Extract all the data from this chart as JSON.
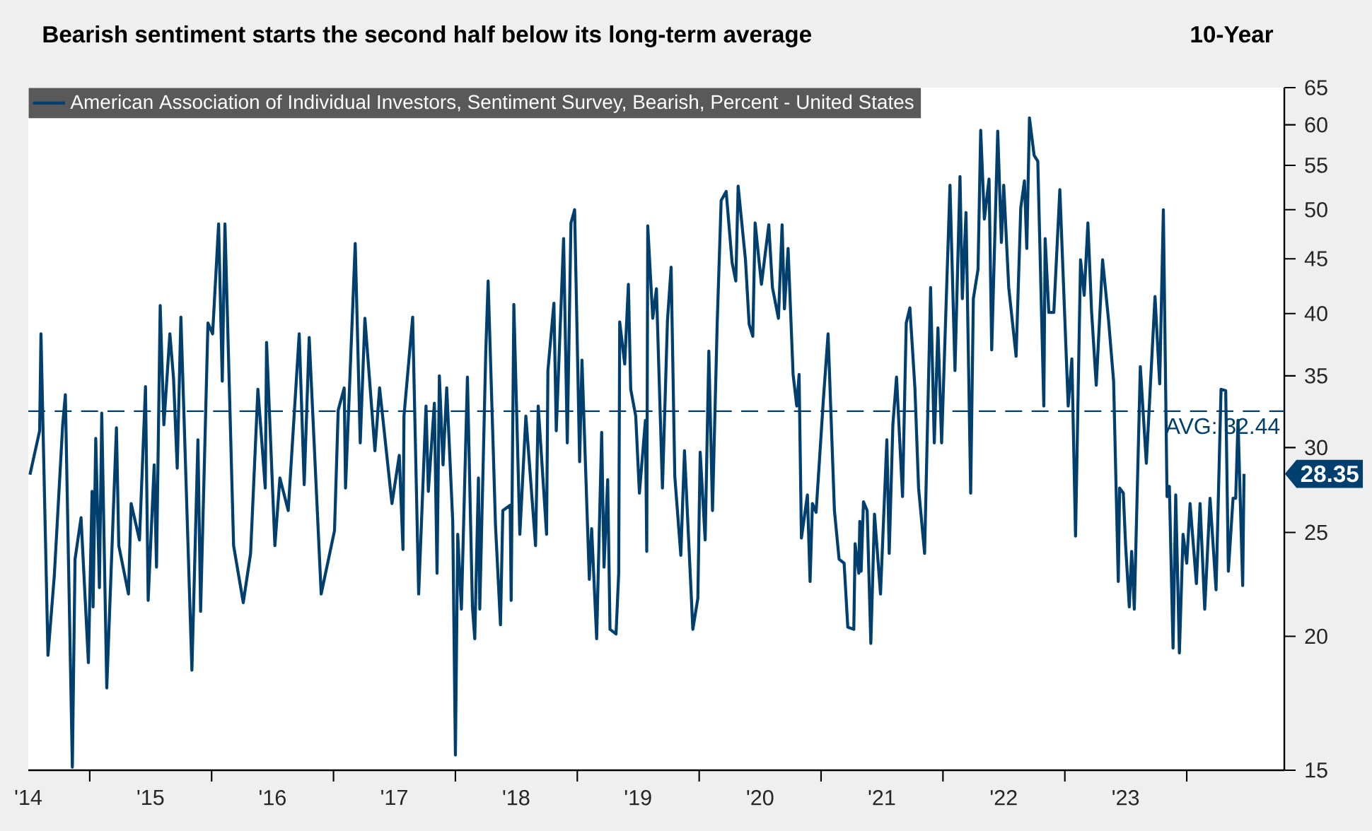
{
  "chart_data": {
    "type": "line",
    "title": "Bearish sentiment starts the second half below its long-term average",
    "subtitle": "10-Year",
    "x": [
      "2014-07-06",
      "2014-08-04",
      "2014-08-08",
      "2014-08-29",
      "2014-09-17",
      "2014-10-12",
      "2014-10-20",
      "2014-11-10",
      "2014-11-18",
      "2014-12-06",
      "2014-12-28",
      "2015-01-08",
      "2015-01-11",
      "2015-01-19",
      "2015-01-30",
      "2015-02-06",
      "2015-02-21",
      "2015-03-22",
      "2015-03-29",
      "2015-04-27",
      "2015-05-05",
      "2015-05-30",
      "2015-06-17",
      "2015-06-25",
      "2015-07-13",
      "2015-07-20",
      "2015-07-31",
      "2015-08-11",
      "2015-08-29",
      "2015-09-09",
      "2015-09-20",
      "2015-10-01",
      "2015-11-03",
      "2015-11-21",
      "2015-11-29",
      "2015-12-21",
      "2016-01-04",
      "2016-01-22",
      "2016-02-02",
      "2016-02-10",
      "2016-03-07",
      "2016-04-05",
      "2016-04-27",
      "2016-05-19",
      "2016-06-10",
      "2016-06-14",
      "2016-07-09",
      "2016-07-24",
      "2016-08-18",
      "2016-09-20",
      "2016-10-05",
      "2016-10-20",
      "2016-11-25",
      "2017-01-04",
      "2017-01-15",
      "2017-02-02",
      "2017-02-06",
      "2017-03-07",
      "2017-03-22",
      "2017-04-05",
      "2017-05-05",
      "2017-05-19",
      "2017-06-25",
      "2017-07-17",
      "2017-07-28",
      "2017-07-31",
      "2017-08-26",
      "2017-09-13",
      "2017-10-05",
      "2017-10-12",
      "2017-10-30",
      "2017-11-07",
      "2017-11-14",
      "2017-11-25",
      "2017-12-06",
      "2017-12-24",
      "2018-01-01",
      "2018-01-08",
      "2018-01-19",
      "2018-02-06",
      "2018-02-21",
      "2018-02-28",
      "2018-03-11",
      "2018-03-15",
      "2018-04-02",
      "2018-04-09",
      "2018-04-24",
      "2018-05-01",
      "2018-05-16",
      "2018-05-23",
      "2018-06-14",
      "2018-06-17",
      "2018-06-25",
      "2018-07-13",
      "2018-07-31",
      "2018-08-29",
      "2018-09-06",
      "2018-10-01",
      "2018-10-05",
      "2018-10-23",
      "2018-10-30",
      "2018-11-21",
      "2018-12-02",
      "2018-12-13",
      "2018-12-24",
      "2019-01-08",
      "2019-01-15",
      "2019-02-06",
      "2019-02-13",
      "2019-02-28",
      "2019-03-15",
      "2019-03-22",
      "2019-04-02",
      "2019-04-09",
      "2019-04-27",
      "2019-05-05",
      "2019-05-08",
      "2019-05-23",
      "2019-06-03",
      "2019-06-10",
      "2019-06-25",
      "2019-07-06",
      "2019-07-24",
      "2019-07-28",
      "2019-07-31",
      "2019-08-15",
      "2019-08-26",
      "2019-09-13",
      "2019-09-28",
      "2019-10-09",
      "2019-10-20",
      "2019-11-07",
      "2019-11-18",
      "2019-12-13",
      "2019-12-28",
      "2020-01-04",
      "2020-01-19",
      "2020-01-30",
      "2020-02-10",
      "2020-02-24",
      "2020-03-07",
      "2020-03-22",
      "2020-04-09",
      "2020-04-20",
      "2020-04-27",
      "2020-05-19",
      "2020-05-30",
      "2020-06-10",
      "2020-06-17",
      "2020-07-06",
      "2020-07-28",
      "2020-08-08",
      "2020-08-26",
      "2020-09-06",
      "2020-09-13",
      "2020-09-24",
      "2020-10-09",
      "2020-10-20",
      "2020-10-27",
      "2020-11-03",
      "2020-11-21",
      "2020-11-29",
      "2020-12-06",
      "2020-12-17",
      "2021-01-08",
      "2021-01-22",
      "2021-02-10",
      "2021-02-24",
      "2021-03-11",
      "2021-03-22",
      "2021-04-09",
      "2021-04-13",
      "2021-04-24",
      "2021-04-27",
      "2021-05-01",
      "2021-05-08",
      "2021-05-19",
      "2021-05-30",
      "2021-06-10",
      "2021-06-28",
      "2021-07-17",
      "2021-07-24",
      "2021-08-04",
      "2021-08-15",
      "2021-09-02",
      "2021-09-13",
      "2021-09-24",
      "2021-10-09",
      "2021-10-20",
      "2021-11-07",
      "2021-11-25",
      "2021-12-06",
      "2021-12-17",
      "2021-12-28",
      "2022-01-22",
      "2022-02-06",
      "2022-02-21",
      "2022-02-28",
      "2022-03-11",
      "2022-03-25",
      "2022-04-02",
      "2022-04-16",
      "2022-04-24",
      "2022-05-05",
      "2022-05-19",
      "2022-05-27",
      "2022-06-14",
      "2022-06-25",
      "2022-07-02",
      "2022-07-17",
      "2022-08-08",
      "2022-08-22",
      "2022-09-02",
      "2022-09-09",
      "2022-09-17",
      "2022-10-01",
      "2022-10-12",
      "2022-10-30",
      "2022-11-03",
      "2022-11-14",
      "2022-11-29",
      "2022-12-17",
      "2023-01-11",
      "2023-01-22",
      "2023-02-02",
      "2023-02-17",
      "2023-02-28",
      "2023-03-11",
      "2023-03-22",
      "2023-04-05",
      "2023-04-24",
      "2023-05-12",
      "2023-05-27",
      "2023-06-10",
      "2023-06-14",
      "2023-06-25",
      "2023-07-02",
      "2023-07-13",
      "2023-07-20",
      "2023-07-28",
      "2023-08-15",
      "2023-09-02",
      "2023-09-28",
      "2023-10-12",
      "2023-10-23",
      "2023-11-03",
      "2023-11-10",
      "2023-11-21",
      "2023-11-29",
      "2023-12-10",
      "2023-12-21",
      "2024-01-01",
      "2024-01-11",
      "2024-01-30",
      "2024-02-10",
      "2024-02-24",
      "2024-03-11",
      "2024-03-29",
      "2024-04-13",
      "2024-04-27",
      "2024-05-05",
      "2024-05-19",
      "2024-05-27",
      "2024-06-03",
      "2024-06-17",
      "2024-06-21"
    ],
    "series": [
      {
        "name": "American Association of Individual Investors, Sentiment Survey, Bearish, Percent - United States",
        "color": "#003f6e",
        "values": [
          28.3,
          31.1,
          38.3,
          19.2,
          22.8,
          31.5,
          33.6,
          15.1,
          23.6,
          25.8,
          18.9,
          27.3,
          21.3,
          30.6,
          22.2,
          32.3,
          17.9,
          31.3,
          24.3,
          21.9,
          26.6,
          24.6,
          34.2,
          21.6,
          28.9,
          23.2,
          40.7,
          31.5,
          38.3,
          34.8,
          28.7,
          39.7,
          18.6,
          30.5,
          21.1,
          39.2,
          38.3,
          48.5,
          34.6,
          48.5,
          24.3,
          21.5,
          23.9,
          34.0,
          27.5,
          37.6,
          24.3,
          28.1,
          26.2,
          38.3,
          27.7,
          38.0,
          21.9,
          25.1,
          32.5,
          34.1,
          27.5,
          46.5,
          30.3,
          39.6,
          29.8,
          34.1,
          26.6,
          29.5,
          24.1,
          32.1,
          39.7,
          21.9,
          32.8,
          27.3,
          33.0,
          22.9,
          35.0,
          28.9,
          34.1,
          25.6,
          15.5,
          24.9,
          21.2,
          34.9,
          21.3,
          19.9,
          28.1,
          21.2,
          36.9,
          42.9,
          30.1,
          25.4,
          20.5,
          26.2,
          26.5,
          21.6,
          40.8,
          24.9,
          32.1,
          24.3,
          32.8,
          24.9,
          35.4,
          40.9,
          31.1,
          47.0,
          30.3,
          48.6,
          50.0,
          29.1,
          36.2,
          22.6,
          25.2,
          19.9,
          31.0,
          23.2,
          28.0,
          20.3,
          20.1,
          22.9,
          39.3,
          35.9,
          42.6,
          34.0,
          32.1,
          27.2,
          31.8,
          24.0,
          48.3,
          39.6,
          42.2,
          27.5,
          39.4,
          44.2,
          28.2,
          23.8,
          29.8,
          20.3,
          21.7,
          29.7,
          24.6,
          36.9,
          26.2,
          39.1,
          51.0,
          52.0,
          44.6,
          42.9,
          52.6,
          44.9,
          39.1,
          38.1,
          48.6,
          42.6,
          48.4,
          42.3,
          39.6,
          48.4,
          40.4,
          46.0,
          35.1,
          32.8,
          35.1,
          24.7,
          27.1,
          22.5,
          26.6,
          26.1,
          33.3,
          38.3,
          26.2,
          23.6,
          23.4,
          20.4,
          20.3,
          24.4,
          22.9,
          25.6,
          23.0,
          26.7,
          26.2,
          19.7,
          26.0,
          21.9,
          30.5,
          23.9,
          31.5,
          34.9,
          27.0,
          39.2,
          40.5,
          34.1,
          27.5,
          23.9,
          42.3,
          30.3,
          38.8,
          30.3,
          52.7,
          35.4,
          53.7,
          41.3,
          49.7,
          27.2,
          41.3,
          44.0,
          59.3,
          49.0,
          53.4,
          37.0,
          59.2,
          46.6,
          52.7,
          42.3,
          36.5,
          50.2,
          53.2,
          46.0,
          60.9,
          56.2,
          55.5,
          32.8,
          47.0,
          40.1,
          40.1,
          52.2,
          32.8,
          36.3,
          24.8,
          44.9,
          41.6,
          48.6,
          40.2,
          34.3,
          44.9,
          39.4,
          34.6,
          22.5,
          27.5,
          27.2,
          24.3,
          21.3,
          24.0,
          21.2,
          35.7,
          29.0,
          41.5,
          34.4,
          50.0,
          27.0,
          27.6,
          19.5,
          27.1,
          19.3,
          24.9,
          23.4,
          26.6,
          22.4,
          26.6,
          21.2,
          26.9,
          22.1,
          34.0,
          33.9,
          23.0,
          26.9,
          26.9,
          31.8,
          22.3,
          28.35
        ]
      }
    ],
    "xlim": [
      "2014-07-01",
      "2024-10-20"
    ],
    "xticks": [
      {
        "value": "2014-07-01",
        "label": "'14"
      },
      {
        "value": "2015-01-01",
        "label": null
      },
      {
        "value": "2015-07-02",
        "label": "'15"
      },
      {
        "value": "2016-01-01",
        "label": null
      },
      {
        "value": "2016-07-02",
        "label": "'16"
      },
      {
        "value": "2017-01-01",
        "label": null
      },
      {
        "value": "2017-07-02",
        "label": "'17"
      },
      {
        "value": "2018-01-01",
        "label": null
      },
      {
        "value": "2018-07-02",
        "label": "'18"
      },
      {
        "value": "2019-01-01",
        "label": null
      },
      {
        "value": "2019-07-02",
        "label": "'19"
      },
      {
        "value": "2020-01-01",
        "label": null
      },
      {
        "value": "2020-07-02",
        "label": "'20"
      },
      {
        "value": "2021-01-01",
        "label": null
      },
      {
        "value": "2021-07-02",
        "label": "'21"
      },
      {
        "value": "2022-01-01",
        "label": null
      },
      {
        "value": "2022-07-02",
        "label": "'22"
      },
      {
        "value": "2023-01-01",
        "label": null
      },
      {
        "value": "2023-07-02",
        "label": "'23"
      },
      {
        "value": "2024-01-01",
        "label": null
      }
    ],
    "annotations": [
      {
        "text": "28.35",
        "x": "2024-06-21",
        "y": 28.35
      }
    ],
    "ylim": [
      15,
      65
    ],
    "yticks": [
      15,
      20,
      25,
      30,
      35,
      40,
      45,
      50,
      55,
      60,
      65
    ],
    "log": "y",
    "legend": "top left",
    "ref_lines": [
      {
        "axis": "y",
        "value": 32.44,
        "label": "AVG: 32.44",
        "line_style": "dashed"
      }
    ]
  }
}
